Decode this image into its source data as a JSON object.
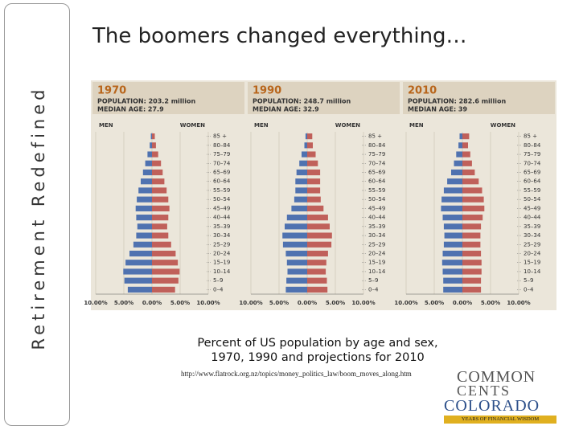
{
  "side_label": "Retirement Redefined",
  "title": "The boomers changed everything…",
  "caption": [
    "Percent of US population by age and sex,",
    "1970, 1990 and projections for 2010"
  ],
  "url": "http://www.flatrock.org.nz/topics/money_politics_law/boom_moves_along.htm",
  "logo": {
    "lines": [
      "COMMON",
      "CENTS",
      "COLORADO"
    ],
    "tagline": "YEARS OF FINANCIAL WISDOM"
  },
  "chart_data": [
    {
      "type": "pyramid",
      "title": "1970",
      "subtitle": [
        "POPULATION: 203.2 million",
        "MEDIAN AGE: 27.9"
      ],
      "categories": [
        "0–4",
        "5–9",
        "10–14",
        "15–19",
        "20–24",
        "25–29",
        "30–34",
        "35–39",
        "40–44",
        "45–49",
        "50–54",
        "55–59",
        "60–64",
        "65–69",
        "70–74",
        "75–79",
        "80–84",
        "85 +"
      ],
      "series": [
        {
          "name": "MEN",
          "color": "#4f72b0",
          "values": [
            4.3,
            4.9,
            5.1,
            4.7,
            4.0,
            3.3,
            2.8,
            2.6,
            2.8,
            2.9,
            2.7,
            2.4,
            2.0,
            1.6,
            1.2,
            0.8,
            0.4,
            0.2
          ]
        },
        {
          "name": "WOMEN",
          "color": "#c0605a",
          "values": [
            4.1,
            4.7,
            4.9,
            4.6,
            4.2,
            3.4,
            2.9,
            2.7,
            2.9,
            3.1,
            2.9,
            2.6,
            2.2,
            1.9,
            1.6,
            1.1,
            0.7,
            0.5
          ]
        }
      ],
      "xlim": [
        -10,
        10
      ],
      "xticks": [
        {
          "value": -10,
          "label": "10.00%"
        },
        {
          "value": -5,
          "label": "5.00%"
        },
        {
          "value": 0,
          "label": "0.00%"
        },
        {
          "value": 5,
          "label": "5.00%"
        },
        {
          "value": 10,
          "label": "10.00%"
        }
      ]
    },
    {
      "type": "pyramid",
      "title": "1990",
      "subtitle": [
        "POPULATION: 248.7 million",
        "MEDIAN AGE: 32.9"
      ],
      "categories": [
        "0–4",
        "5–9",
        "10–14",
        "15–19",
        "20–24",
        "25–29",
        "30–34",
        "35–39",
        "40–44",
        "45–49",
        "50–54",
        "55–59",
        "60–64",
        "65–69",
        "70–74",
        "75–79",
        "80–84",
        "85 +"
      ],
      "series": [
        {
          "name": "MEN",
          "color": "#4f72b0",
          "values": [
            3.8,
            3.7,
            3.5,
            3.6,
            3.8,
            4.3,
            4.4,
            4.0,
            3.6,
            2.8,
            2.3,
            2.1,
            2.1,
            1.9,
            1.4,
            1.0,
            0.5,
            0.3
          ]
        },
        {
          "name": "WOMEN",
          "color": "#c0605a",
          "values": [
            3.6,
            3.5,
            3.3,
            3.4,
            3.7,
            4.3,
            4.4,
            4.0,
            3.7,
            2.9,
            2.4,
            2.3,
            2.3,
            2.3,
            1.9,
            1.5,
            1.0,
            0.9
          ]
        }
      ],
      "xlim": [
        -10,
        10
      ],
      "xticks": [
        {
          "value": -10,
          "label": "10.00%"
        },
        {
          "value": -5,
          "label": "5.00%"
        },
        {
          "value": 0,
          "label": "0.00%"
        },
        {
          "value": 5,
          "label": "5.00%"
        },
        {
          "value": 10,
          "label": "10.00%"
        }
      ]
    },
    {
      "type": "pyramid",
      "title": "2010",
      "subtitle": [
        "POPULATION: 282.6 million",
        "MEDIAN AGE: 39"
      ],
      "categories": [
        "0–4",
        "5–9",
        "10–14",
        "15–19",
        "20–24",
        "25–29",
        "30–34",
        "35–39",
        "40–44",
        "45–49",
        "50–54",
        "55–59",
        "60–64",
        "65–69",
        "70–74",
        "75–79",
        "80–84",
        "85 +"
      ],
      "series": [
        {
          "name": "MEN",
          "color": "#4f72b0",
          "values": [
            3.4,
            3.4,
            3.5,
            3.6,
            3.5,
            3.3,
            3.2,
            3.3,
            3.5,
            3.8,
            3.7,
            3.3,
            2.7,
            2.0,
            1.5,
            1.1,
            0.7,
            0.5
          ]
        },
        {
          "name": "WOMEN",
          "color": "#c0605a",
          "values": [
            3.3,
            3.3,
            3.4,
            3.4,
            3.3,
            3.2,
            3.2,
            3.3,
            3.6,
            3.9,
            3.8,
            3.5,
            2.9,
            2.2,
            1.7,
            1.4,
            1.0,
            1.2
          ]
        }
      ],
      "xlim": [
        -10,
        10
      ],
      "xticks": [
        {
          "value": -10,
          "label": "10.00%"
        },
        {
          "value": -5,
          "label": "5.00%"
        },
        {
          "value": 0,
          "label": "0.00%"
        },
        {
          "value": 5,
          "label": "5.00%"
        },
        {
          "value": 10,
          "label": "10.00%"
        }
      ]
    }
  ]
}
